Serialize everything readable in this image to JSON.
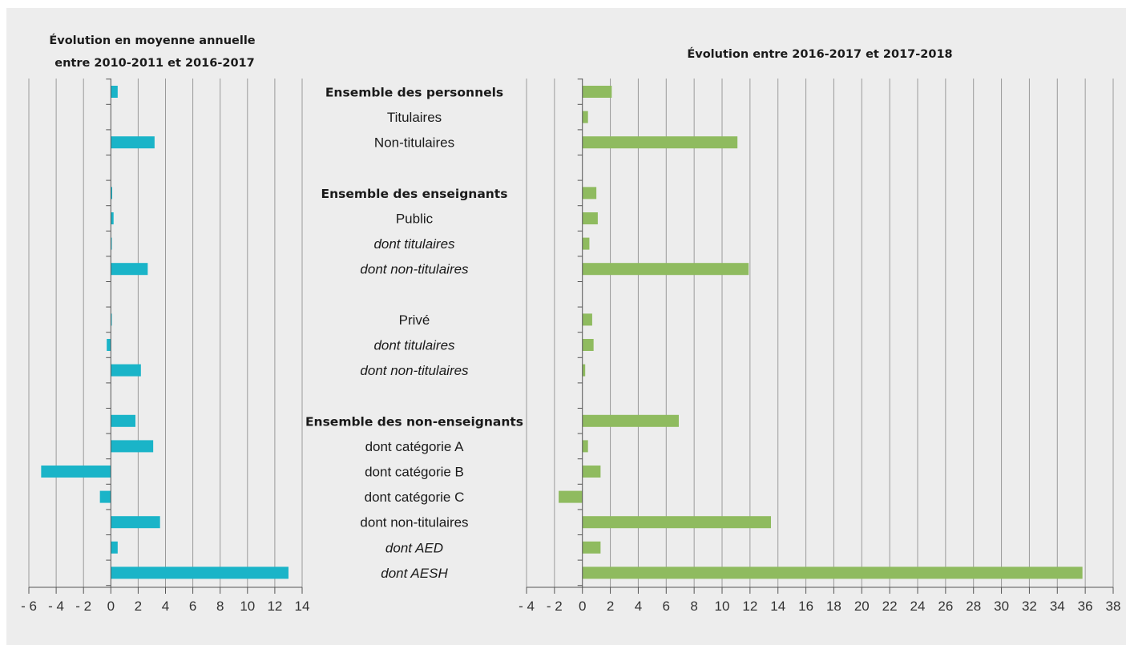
{
  "colors": {
    "background": "#ededed",
    "left_bar": "#1ab4c8",
    "right_bar": "#8fbb5f"
  },
  "chart_data": [
    {
      "type": "bar",
      "orientation": "horizontal",
      "title": "Évolution en moyenne annuelle entre 2010-2011 et 2016-2017",
      "title_lines": [
        "Évolution en moyenne annuelle",
        "entre 2010-2011 et 2016-2017"
      ],
      "xlim": [
        -6,
        14
      ],
      "tick_labels": [
        "- 6",
        "- 4",
        "- 2",
        "0",
        "2",
        "4",
        "6",
        "8",
        "10",
        "12",
        "14"
      ],
      "tick_values": [
        -6,
        -4,
        -2,
        0,
        2,
        4,
        6,
        8,
        10,
        12,
        14
      ],
      "grid": true,
      "values": [
        0.5,
        null,
        3.2,
        null,
        0.1,
        0.2,
        0.05,
        2.7,
        null,
        0.05,
        -0.3,
        2.2,
        null,
        1.8,
        3.1,
        -5.1,
        -0.8,
        3.6,
        0.5,
        13.0
      ],
      "color": "#1ab4c8"
    },
    {
      "type": "bar",
      "orientation": "horizontal",
      "title": "Évolution entre 2016-2017 et 2017-2018",
      "xlim": [
        -4,
        38
      ],
      "tick_labels": [
        "- 4",
        "- 2",
        "0",
        "2",
        "4",
        "6",
        "8",
        "10",
        "12",
        "14",
        "16",
        "18",
        "20",
        "22",
        "24",
        "26",
        "28",
        "30",
        "32",
        "34",
        "36",
        "38"
      ],
      "tick_values": [
        -4,
        -2,
        0,
        2,
        4,
        6,
        8,
        10,
        12,
        14,
        16,
        18,
        20,
        22,
        24,
        26,
        28,
        30,
        32,
        34,
        36,
        38
      ],
      "grid": true,
      "values": [
        2.1,
        0.4,
        11.1,
        null,
        1.0,
        1.1,
        0.5,
        11.9,
        null,
        0.7,
        0.8,
        0.2,
        null,
        6.9,
        0.4,
        1.3,
        -1.7,
        13.5,
        1.3,
        35.8
      ],
      "color": "#8fbb5f"
    }
  ],
  "categories": [
    {
      "label": "Ensemble des personnels",
      "style": "bold"
    },
    {
      "label": "Titulaires",
      "style": "normal"
    },
    {
      "label": "Non-titulaires",
      "style": "normal"
    },
    {
      "label": "",
      "style": "normal"
    },
    {
      "label": "Ensemble des enseignants",
      "style": "bold"
    },
    {
      "label": "Public",
      "style": "normal"
    },
    {
      "label": "dont titulaires",
      "style": "italic"
    },
    {
      "label": "dont non-titulaires",
      "style": "italic"
    },
    {
      "label": "",
      "style": "normal"
    },
    {
      "label": "Privé",
      "style": "normal"
    },
    {
      "label": "dont titulaires",
      "style": "italic"
    },
    {
      "label": "dont non-titulaires",
      "style": "italic"
    },
    {
      "label": "",
      "style": "normal"
    },
    {
      "label": "Ensemble des non-enseignants",
      "style": "bold"
    },
    {
      "label": "dont catégorie A",
      "style": "normal"
    },
    {
      "label": "dont catégorie B",
      "style": "normal"
    },
    {
      "label": "dont catégorie C",
      "style": "normal"
    },
    {
      "label": "dont non-titulaires",
      "style": "normal"
    },
    {
      "label": "dont AED",
      "style": "italic"
    },
    {
      "label": "dont AESH",
      "style": "italic"
    }
  ]
}
